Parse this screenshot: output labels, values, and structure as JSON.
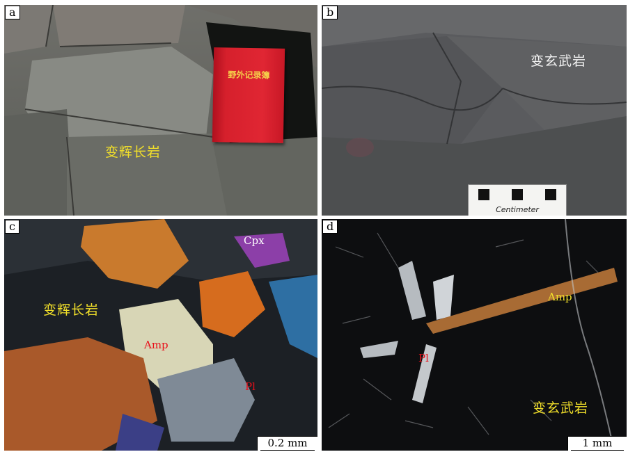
{
  "panels": {
    "a": {
      "letter": "a",
      "rock_label": "变辉长岩",
      "notebook_text": "野外记录簿",
      "label_color": "#f2e02a"
    },
    "b": {
      "letter": "b",
      "rock_label": "变玄武岩",
      "scale_card_text": "Centimeter",
      "label_color": "#f3f3f3"
    },
    "c": {
      "letter": "c",
      "rock_label": "变辉长岩",
      "minerals": {
        "cpx": "Cpx",
        "amp": "Amp",
        "pl": "Pl"
      },
      "scale": "0.2 mm",
      "label_color": "#f2e02a"
    },
    "d": {
      "letter": "d",
      "rock_label": "变玄武岩",
      "minerals": {
        "amp": "Amp",
        "pl": "Pl"
      },
      "scale": "1 mm",
      "label_color": "#f2e02a"
    }
  },
  "colors": {
    "mineral_label": "#e8101a",
    "yellow_label": "#f2e02a",
    "white_label": "#f3f3f3"
  }
}
